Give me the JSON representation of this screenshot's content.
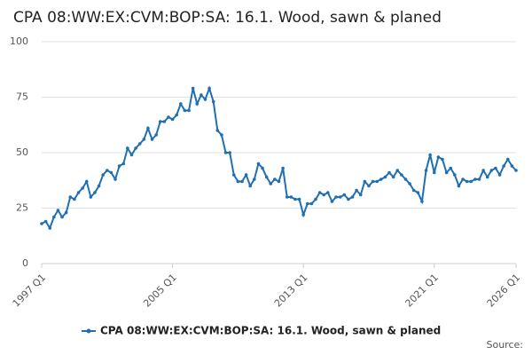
{
  "chart_data": {
    "type": "line",
    "title": "CPA 08:WW:EX:CVM:BOP:SA: 16.1. Wood, sawn & planed",
    "source": "Source:",
    "categories": [
      "1997 Q1",
      null,
      null,
      null,
      null,
      null,
      null,
      null,
      null,
      null,
      null,
      null,
      null,
      null,
      null,
      null,
      null,
      null,
      null,
      null,
      null,
      null,
      null,
      null,
      null,
      null,
      null,
      null,
      null,
      null,
      null,
      null,
      "2005 Q1",
      null,
      null,
      null,
      null,
      null,
      null,
      null,
      null,
      null,
      null,
      null,
      null,
      null,
      null,
      null,
      null,
      null,
      null,
      null,
      null,
      null,
      null,
      null,
      null,
      null,
      null,
      null,
      null,
      null,
      null,
      null,
      "2013 Q1",
      null,
      null,
      null,
      null,
      null,
      null,
      null,
      null,
      null,
      null,
      null,
      null,
      null,
      null,
      null,
      null,
      null,
      null,
      null,
      null,
      null,
      null,
      null,
      null,
      null,
      null,
      null,
      null,
      null,
      null,
      null,
      "2021 Q1",
      null,
      null,
      null,
      null,
      null,
      null,
      null,
      null,
      null,
      null,
      null,
      null,
      null,
      null,
      null,
      null,
      null,
      null,
      null,
      "2026 Q1"
    ],
    "series": [
      {
        "name": "CPA 08:WW:EX:CVM:BOP:SA: 16.1. Wood, sawn & planed",
        "color": "#1f6fb2",
        "values": [
          18,
          19,
          16,
          21,
          24,
          21,
          23,
          30,
          29,
          32,
          34,
          37,
          30,
          32,
          35,
          40,
          42,
          41,
          38,
          44,
          45,
          52,
          49,
          52,
          54,
          56,
          61,
          56,
          58,
          64,
          64,
          66,
          65,
          67,
          72,
          69,
          69,
          79,
          72,
          76,
          74,
          79,
          73,
          60,
          58,
          50,
          50,
          40,
          37,
          37,
          40,
          35,
          38,
          45,
          43,
          39,
          36,
          38,
          37,
          43,
          30,
          30,
          29,
          29,
          22,
          27,
          27,
          29,
          32,
          31,
          32,
          28,
          30,
          30,
          31,
          29,
          30,
          33,
          31,
          37,
          35,
          37,
          37,
          38,
          39,
          41,
          39,
          42,
          40,
          38,
          36,
          33,
          32,
          28,
          42,
          49,
          41,
          48,
          47,
          41,
          43,
          40,
          35,
          38,
          37,
          37,
          38,
          38,
          42,
          39,
          42,
          43,
          40,
          44,
          47,
          44,
          42
        ]
      }
    ],
    "ylim": [
      0,
      100
    ],
    "yticks": [
      0,
      25,
      50,
      75,
      100
    ],
    "grid": true,
    "legend": "bottom"
  }
}
